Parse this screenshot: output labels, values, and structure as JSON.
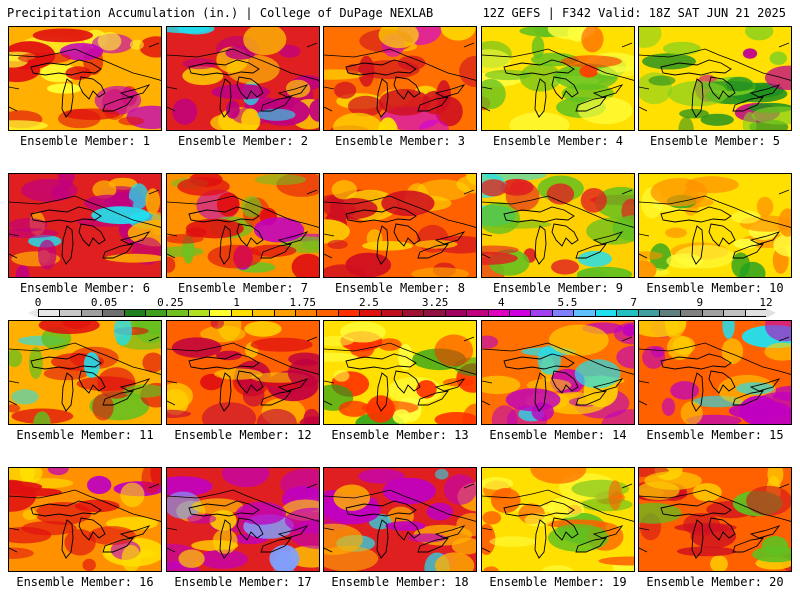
{
  "header": {
    "left": "Precipitation Accumulation (in.) | College of DuPage NEXLAB",
    "right": "12Z GEFS | F342 Valid: 18Z SAT JUN 21 2025"
  },
  "members": [
    {
      "label": "Ensemble Member: 1",
      "base": "#ffb000",
      "accent": "#e01010",
      "hi": "#c000c0",
      "low": "#ffff30"
    },
    {
      "label": "Ensemble Member: 2",
      "base": "#e02020",
      "accent": "#c00080",
      "hi": "#20e0f0",
      "low": "#ffd000"
    },
    {
      "label": "Ensemble Member: 3",
      "base": "#ff7000",
      "accent": "#d01020",
      "hi": "#d000e0",
      "low": "#ffe000"
    },
    {
      "label": "Ensemble Member: 4",
      "base": "#ffe000",
      "accent": "#60c020",
      "hi": "#ff4000",
      "low": "#ffff40"
    },
    {
      "label": "Ensemble Member: 5",
      "base": "#ffe000",
      "accent": "#209020",
      "hi": "#c00090",
      "low": "#80d020"
    },
    {
      "label": "Ensemble Member: 6",
      "base": "#e02020",
      "accent": "#c00080",
      "hi": "#20e0f0",
      "low": "#ffb000"
    },
    {
      "label": "Ensemble Member: 7",
      "base": "#ff9000",
      "accent": "#e01010",
      "hi": "#c000c0",
      "low": "#70c020"
    },
    {
      "label": "Ensemble Member: 8",
      "base": "#ff6000",
      "accent": "#d01020",
      "hi": "#ffb000",
      "low": "#ffd000"
    },
    {
      "label": "Ensemble Member: 9",
      "base": "#ffd000",
      "accent": "#e02020",
      "hi": "#20e0f0",
      "low": "#60c020"
    },
    {
      "label": "Ensemble Member: 10",
      "base": "#ffe000",
      "accent": "#ff9000",
      "hi": "#20a020",
      "low": "#ffff40"
    },
    {
      "label": "Ensemble Member: 11",
      "base": "#ffb000",
      "accent": "#e01010",
      "hi": "#20e0f0",
      "low": "#60c020"
    },
    {
      "label": "Ensemble Member: 12",
      "base": "#ff6000",
      "accent": "#c00040",
      "hi": "#e01010",
      "low": "#ffd000"
    },
    {
      "label": "Ensemble Member: 13",
      "base": "#ffe000",
      "accent": "#ff3000",
      "hi": "#20a020",
      "low": "#ffff40"
    },
    {
      "label": "Ensemble Member: 14",
      "base": "#ff7000",
      "accent": "#c000c0",
      "hi": "#20e0f0",
      "low": "#ffd000"
    },
    {
      "label": "Ensemble Member: 15",
      "base": "#ff6000",
      "accent": "#c000c0",
      "hi": "#20e0f0",
      "low": "#ffd000"
    },
    {
      "label": "Ensemble Member: 16",
      "base": "#ff9000",
      "accent": "#e01010",
      "hi": "#c000c0",
      "low": "#ffe000"
    },
    {
      "label": "Ensemble Member: 17",
      "base": "#e02020",
      "accent": "#c000c0",
      "hi": "#80a0ff",
      "low": "#ffd000"
    },
    {
      "label": "Ensemble Member: 18",
      "base": "#e02020",
      "accent": "#c000c0",
      "hi": "#20e0f0",
      "low": "#ffb000"
    },
    {
      "label": "Ensemble Member: 19",
      "base": "#ffe000",
      "accent": "#ff6000",
      "hi": "#60c020",
      "low": "#ffff40"
    },
    {
      "label": "Ensemble Member: 20",
      "base": "#ff6000",
      "accent": "#d01020",
      "hi": "#60c020",
      "low": "#ffd000"
    }
  ],
  "colorbar": {
    "tick_labels": [
      "0",
      "0.05",
      "0.25",
      "1",
      "1.75",
      "2.5",
      "3.25",
      "4",
      "5.5",
      "7",
      "9",
      "12"
    ],
    "colors": [
      "#e8e8e8",
      "#c8c8c8",
      "#a0a0a0",
      "#707070",
      "#208020",
      "#40a020",
      "#70c020",
      "#b0e020",
      "#ffff30",
      "#ffe000",
      "#ffc000",
      "#ffa000",
      "#ff8000",
      "#ff6000",
      "#ff3000",
      "#e01010",
      "#c01020",
      "#a01030",
      "#901040",
      "#a00060",
      "#c00080",
      "#e000c0",
      "#d000e0",
      "#a040f0",
      "#8080ff",
      "#60c0ff",
      "#20e0f0",
      "#20c0c0",
      "#40a0a0",
      "#608080",
      "#808080",
      "#a0a0a0",
      "#c0c0c0",
      "#e0e0e0"
    ]
  }
}
